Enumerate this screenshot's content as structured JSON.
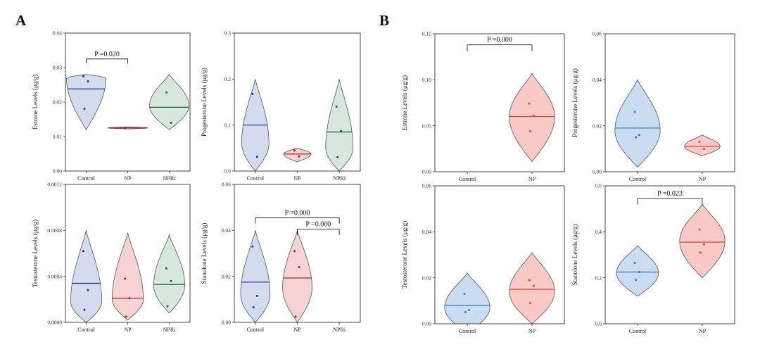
{
  "figure": {
    "panel_letters": [
      "A",
      "B"
    ]
  },
  "chart_data": [
    {
      "type": "violin",
      "panel": "A",
      "ylabel": "Estrone Levels (μg/g)",
      "categories": [
        "Control",
        "NP",
        "NPRi"
      ],
      "ylim": [
        0,
        0.04
      ],
      "yticks": [
        "0.00",
        "0.01",
        "0.02",
        "0.03",
        "0.04"
      ],
      "series": [
        {
          "name": "Control",
          "color": "#d3dcee",
          "line": "#1f2f80",
          "min": 0.012,
          "max": 0.028,
          "peak": 0.027,
          "width": 0.95,
          "mean": 0.0238,
          "points": [
            0.0275,
            0.026,
            0.018
          ]
        },
        {
          "name": "NP",
          "color": "#f6d3d3",
          "line": "#9b1c1c",
          "min": 0.0122,
          "max": 0.0128,
          "peak": 0.0125,
          "width": 0.95,
          "mean": 0.0125,
          "points": [
            0.0125
          ]
        },
        {
          "name": "NPRi",
          "color": "#d6e8dd",
          "line": "#1f5c3a",
          "min": 0.012,
          "max": 0.028,
          "peak": 0.019,
          "width": 0.95,
          "mean": 0.0185,
          "points": [
            0.0228,
            0.014
          ]
        }
      ],
      "annotations": [
        {
          "text": "P =0.020",
          "from": 0,
          "to": 1,
          "y": 0.0325,
          "drop": 0.0013
        }
      ]
    },
    {
      "type": "violin",
      "panel": "A",
      "ylabel": "Progesterone Levels (μg/g)",
      "categories": [
        "Control",
        "NP",
        "NPRi"
      ],
      "ylim": [
        0,
        0.3
      ],
      "yticks": [
        "0.0",
        "0.1",
        "0.2",
        "0.3"
      ],
      "series": [
        {
          "name": "Control",
          "color": "#d3dcee",
          "line": "#1f2f80",
          "min": 0.0,
          "max": 0.2,
          "peak": 0.06,
          "width": 0.65,
          "mean": 0.1,
          "points": [
            0.168,
            0.031
          ]
        },
        {
          "name": "NP",
          "color": "#f6d3d3",
          "line": "#9b1c1c",
          "min": 0.02,
          "max": 0.05,
          "peak": 0.037,
          "width": 0.65,
          "mean": 0.037,
          "points": [
            0.045,
            0.032
          ]
        },
        {
          "name": "NPRi",
          "color": "#d6e8dd",
          "line": "#1f5c3a",
          "min": 0.0,
          "max": 0.2,
          "peak": 0.05,
          "width": 0.65,
          "mean": 0.085,
          "points": [
            0.14,
            0.087,
            0.03
          ]
        }
      ],
      "annotations": []
    },
    {
      "type": "violin",
      "panel": "A",
      "ylabel": "Testosterone Levels (μg/g)",
      "categories": [
        "Control",
        "NP",
        "NPRi"
      ],
      "ylim": [
        0,
        0.0012
      ],
      "yticks": [
        "0.0000",
        "0.0004",
        "0.0008",
        "0.0012"
      ],
      "series": [
        {
          "name": "Control",
          "color": "#d3dcee",
          "line": "#1f2f80",
          "min": 0.0,
          "max": 0.0008,
          "peak": 0.00018,
          "width": 0.75,
          "mean": 0.00034,
          "points": [
            0.00062,
            0.00028,
            0.00011
          ]
        },
        {
          "name": "NP",
          "color": "#f6d3d3",
          "line": "#9b1c1c",
          "min": 2e-05,
          "max": 0.00078,
          "peak": 0.0002,
          "width": 0.75,
          "mean": 0.00021,
          "points": [
            0.00038,
            0.00021,
            5e-05
          ]
        },
        {
          "name": "NPRi",
          "color": "#d6e8dd",
          "line": "#1f5c3a",
          "min": 8e-05,
          "max": 0.00076,
          "peak": 0.00032,
          "width": 0.75,
          "mean": 0.00033,
          "points": [
            0.00047,
            0.00036,
            0.00014
          ]
        }
      ],
      "annotations": []
    },
    {
      "type": "violin",
      "panel": "A",
      "ylabel": "Stanolone Levels (μg/g)",
      "categories": [
        "Control",
        "NP",
        "NPRi"
      ],
      "ylim": [
        0,
        0.06
      ],
      "yticks": [
        "0.00",
        "0.02",
        "0.04",
        "0.06"
      ],
      "series": [
        {
          "name": "Control",
          "color": "#d3dcee",
          "line": "#1f2f80",
          "min": 0.0,
          "max": 0.04,
          "peak": 0.012,
          "width": 0.7,
          "mean": 0.0175,
          "points": [
            0.033,
            0.0115,
            0.0065
          ]
        },
        {
          "name": "NP",
          "color": "#f6d3d3",
          "line": "#9b1c1c",
          "min": 0.0,
          "max": 0.04,
          "peak": 0.015,
          "width": 0.7,
          "mean": 0.0193,
          "points": [
            0.031,
            0.024,
            0.0025
          ]
        }
      ],
      "annotations": [
        {
          "text": "P =0.000",
          "from": 0,
          "to": 2,
          "y": 0.0455,
          "drop": 0.0025
        },
        {
          "text": "P =0.000",
          "from": 1,
          "to": 2,
          "y": 0.0405,
          "drop": 0.0025
        }
      ]
    },
    {
      "type": "violin",
      "panel": "B",
      "ylabel": "Estrone Levels (μg/g)",
      "categories": [
        "Control",
        "NP"
      ],
      "ylim": [
        0,
        0.15
      ],
      "yticks": [
        "0.00",
        "0.05",
        "0.10",
        "0.15"
      ],
      "series": [
        {
          "name": "NP",
          "color": "#f8c9c5",
          "line": "#d9453a",
          "min": 0.011,
          "max": 0.107,
          "peak": 0.06,
          "width": 0.7,
          "mean": 0.06,
          "points": [
            0.074,
            0.061,
            0.044
          ]
        }
      ],
      "annotations": [
        {
          "text": "P =0.000",
          "from": 0,
          "to": 1,
          "y": 0.138,
          "drop": 0.007
        }
      ]
    },
    {
      "type": "violin",
      "panel": "B",
      "ylabel": "Progesterone Levels (μg/g)",
      "categories": [
        "Control",
        "NP"
      ],
      "ylim": [
        0,
        0.06
      ],
      "yticks": [
        "0.00",
        "0.02",
        "0.04",
        "0.06"
      ],
      "series": [
        {
          "name": "Control",
          "color": "#c9dcf0",
          "line": "#2a78c8",
          "min": 0.002,
          "max": 0.04,
          "peak": 0.018,
          "width": 0.7,
          "mean": 0.019,
          "points": [
            0.026,
            0.016,
            0.015
          ]
        },
        {
          "name": "NP",
          "color": "#f8c9c5",
          "line": "#d9453a",
          "min": 0.007,
          "max": 0.016,
          "peak": 0.011,
          "width": 0.55,
          "mean": 0.011,
          "points": [
            0.013,
            0.01
          ]
        }
      ],
      "annotations": []
    },
    {
      "type": "violin",
      "panel": "B",
      "ylabel": "Testosterone Levels (μg/g)",
      "categories": [
        "Control",
        "NP"
      ],
      "ylim": [
        0,
        0.06
      ],
      "yticks": [
        "0.00",
        "0.02",
        "0.04",
        "0.06"
      ],
      "series": [
        {
          "name": "Control",
          "color": "#c9dcf0",
          "line": "#2a78c8",
          "min": -0.004,
          "max": 0.022,
          "peak": 0.007,
          "width": 0.7,
          "mean": 0.008,
          "points": [
            0.013,
            0.006,
            0.005
          ]
        },
        {
          "name": "NP",
          "color": "#f8c9c5",
          "line": "#d9453a",
          "min": 0.0,
          "max": 0.031,
          "peak": 0.014,
          "width": 0.7,
          "mean": 0.015,
          "points": [
            0.019,
            0.0165,
            0.009
          ]
        }
      ],
      "annotations": []
    },
    {
      "type": "violin",
      "panel": "B",
      "ylabel": "Stanolone Levels (μg/g)",
      "categories": [
        "Control",
        "NP"
      ],
      "ylim": [
        0,
        0.6
      ],
      "yticks": [
        "0.0",
        "0.2",
        "0.4",
        "0.6"
      ],
      "series": [
        {
          "name": "Control",
          "color": "#c9dcf0",
          "line": "#2a78c8",
          "min": 0.12,
          "max": 0.34,
          "peak": 0.22,
          "width": 0.65,
          "mean": 0.225,
          "points": [
            0.265,
            0.225,
            0.19
          ]
        },
        {
          "name": "NP",
          "color": "#f8c9c5",
          "line": "#d9453a",
          "min": 0.2,
          "max": 0.52,
          "peak": 0.36,
          "width": 0.7,
          "mean": 0.355,
          "points": [
            0.41,
            0.345,
            0.31
          ]
        }
      ],
      "annotations": [
        {
          "text": "P =0.023",
          "from": 0,
          "to": 1,
          "y": 0.545,
          "drop": 0.027
        }
      ]
    }
  ]
}
